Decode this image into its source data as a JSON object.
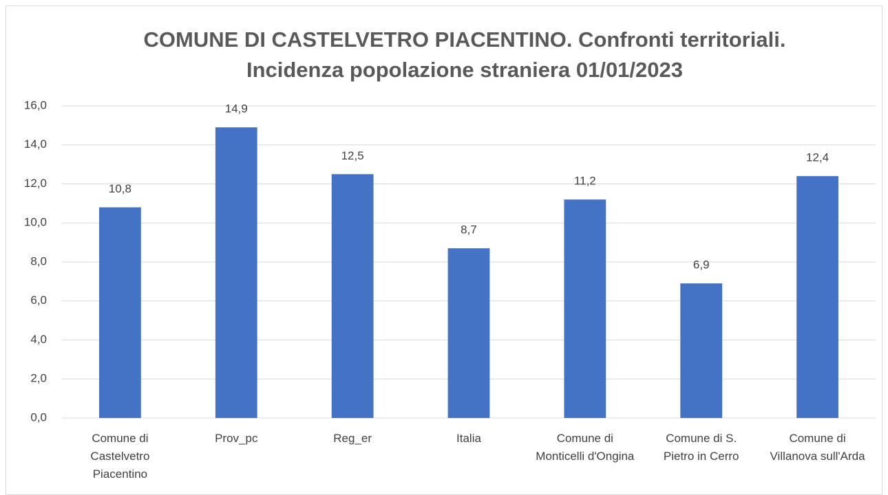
{
  "chart_data": {
    "type": "bar",
    "title": [
      "COMUNE DI CASTELVETRO PIACENTINO. Confronti territoriali.",
      "Incidenza popolazione straniera 01/01/2023"
    ],
    "categories": [
      "Comune di Castelvetro Piacentino",
      "Prov_pc",
      "Reg_er",
      "Italia",
      "Comune di Monticelli d'Ongina",
      "Comune di S. Pietro in Cerro",
      "Comune di Villanova sull'Arda"
    ],
    "values": [
      10.8,
      14.9,
      12.5,
      8.7,
      11.2,
      6.9,
      12.4
    ],
    "value_labels": [
      "10,8",
      "14,9",
      "12,5",
      "8,7",
      "11,2",
      "6,9",
      "12,4"
    ],
    "color": "#4472c4",
    "ylim": [
      0,
      16
    ],
    "yticks": [
      {
        "value": 0,
        "label": "0,0"
      },
      {
        "value": 2,
        "label": "2,0"
      },
      {
        "value": 4,
        "label": "4,0"
      },
      {
        "value": 6,
        "label": "6,0"
      },
      {
        "value": 8,
        "label": "8,0"
      },
      {
        "value": 10,
        "label": "10,0"
      },
      {
        "value": 12,
        "label": "12,0"
      },
      {
        "value": 14,
        "label": "14,0"
      },
      {
        "value": 16,
        "label": "16,0"
      }
    ],
    "grid": true
  }
}
